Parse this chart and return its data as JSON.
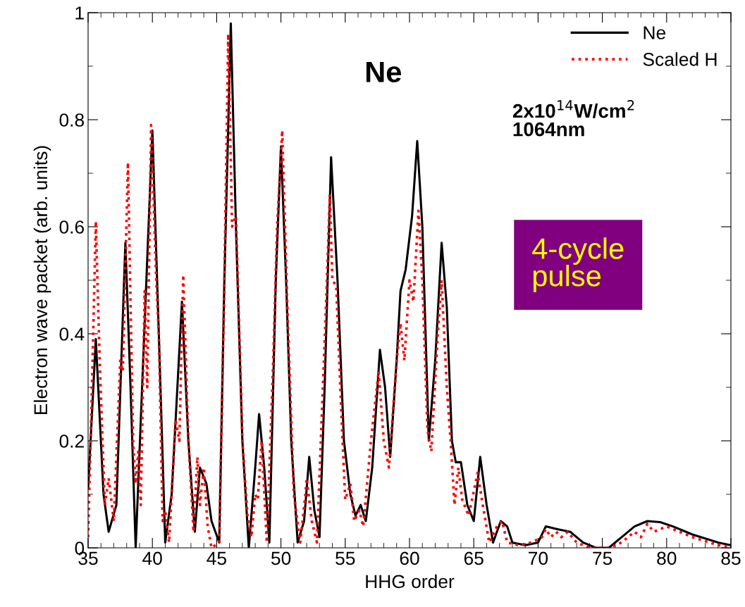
{
  "chart_data": {
    "type": "line",
    "xlabel": "HHG order",
    "ylabel": "Electron wave packet (arb. units)",
    "xlim": [
      35,
      85
    ],
    "xticks": [
      35,
      40,
      45,
      50,
      55,
      60,
      65,
      70,
      75,
      80,
      85
    ],
    "ylim": [
      0,
      1
    ],
    "yticks": [
      0,
      0.2,
      0.4,
      0.6,
      0.8,
      1
    ],
    "grid": false,
    "legend": "top right",
    "marker": "none",
    "annotations": [
      "Ne",
      "2x10$^{14}$W/cm$^{2}$\n1064nm",
      "4-cycle\npulse"
    ],
    "series": [
      {
        "name": "Ne",
        "color": "#000000",
        "line_style": "solid",
        "x": [
          35,
          35.6,
          36.2,
          36.6,
          37.2,
          37.9,
          38.3,
          38.7,
          39.2,
          40.0,
          40.5,
          41.0,
          41.5,
          42.3,
          42.8,
          43.3,
          43.7,
          44.2,
          44.6,
          45.2,
          45.6,
          46.1,
          46.5,
          47.0,
          47.5,
          48.0,
          48.3,
          48.7,
          49.1,
          49.6,
          50.0,
          50.4,
          50.8,
          51.3,
          51.8,
          52.2,
          52.6,
          53.0,
          53.4,
          53.9,
          54.4,
          54.9,
          55.4,
          55.8,
          56.2,
          56.6,
          57.1,
          57.7,
          58.1,
          58.5,
          59.0,
          59.3,
          59.7,
          60.2,
          60.6,
          61.0,
          61.5,
          62.0,
          62.5,
          62.9,
          63.3,
          63.6,
          64.0,
          64.5,
          65.0,
          65.5,
          66.0,
          66.5,
          67.1,
          67.6,
          68.0,
          69.0,
          70.0,
          70.6,
          71.5,
          72.5,
          73.5,
          74.5,
          75.5,
          76.5,
          77.5,
          78.5,
          79.5,
          80.5,
          82,
          84,
          85
        ],
        "values": [
          0.11,
          0.39,
          0.1,
          0.03,
          0.08,
          0.57,
          0.3,
          0.0,
          0.3,
          0.78,
          0.4,
          0.01,
          0.1,
          0.46,
          0.2,
          0.03,
          0.15,
          0.12,
          0.05,
          0.01,
          0.5,
          0.98,
          0.6,
          0.2,
          0.0,
          0.15,
          0.25,
          0.15,
          0.01,
          0.5,
          0.75,
          0.5,
          0.2,
          0.01,
          0.05,
          0.17,
          0.07,
          0.02,
          0.3,
          0.73,
          0.5,
          0.2,
          0.1,
          0.06,
          0.08,
          0.05,
          0.15,
          0.37,
          0.3,
          0.17,
          0.35,
          0.48,
          0.52,
          0.62,
          0.76,
          0.6,
          0.2,
          0.35,
          0.57,
          0.45,
          0.2,
          0.16,
          0.16,
          0.08,
          0.05,
          0.17,
          0.08,
          0.01,
          0.05,
          0.04,
          0.01,
          0.005,
          0.01,
          0.04,
          0.035,
          0.03,
          0.01,
          0.0,
          0.0,
          0.02,
          0.04,
          0.05,
          0.048,
          0.04,
          0.025,
          0.01,
          0.005
        ]
      },
      {
        "name": "Scaled H",
        "color": "#ff0000",
        "line_style": "dotted",
        "x": [
          35,
          35.3,
          35.6,
          35.9,
          36.3,
          36.6,
          37.0,
          37.5,
          37.7,
          38.1,
          38.5,
          38.7,
          38.9,
          39.1,
          39.4,
          39.6,
          39.9,
          40.3,
          40.5,
          40.8,
          41.0,
          41.3,
          41.8,
          42.1,
          42.4,
          42.8,
          43.2,
          43.5,
          43.7,
          44.0,
          44.3,
          44.6,
          45.2,
          45.6,
          45.9,
          46.2,
          46.5,
          47.0,
          47.4,
          47.7,
          48.0,
          48.2,
          48.5,
          48.9,
          49.4,
          49.7,
          50.1,
          50.5,
          51.0,
          51.5,
          51.9,
          52.0,
          52.4,
          52.8,
          53.5,
          53.8,
          54.0,
          54.3,
          54.7,
          55.0,
          55.4,
          55.7,
          56.1,
          56.4,
          57.0,
          57.6,
          58.0,
          58.4,
          59.0,
          59.3,
          59.6,
          60.0,
          60.3,
          60.7,
          61.0,
          61.4,
          61.7,
          62.2,
          62.5,
          62.9,
          63.2,
          63.5,
          63.8,
          64.1,
          64.6,
          65.3,
          65.7,
          66.2,
          66.8,
          67.2,
          67.6,
          68.5,
          69.5,
          70.3,
          70.6,
          71.0,
          71.4,
          71.8,
          72.3,
          73.0,
          74,
          75.5,
          76.5,
          77.5,
          78,
          78.5,
          79,
          80,
          81,
          82,
          84,
          85
        ],
        "values": [
          0.02,
          0.3,
          0.61,
          0.35,
          0.08,
          0.13,
          0.05,
          0.35,
          0.33,
          0.72,
          0.2,
          0.12,
          0.18,
          0.08,
          0.48,
          0.3,
          0.79,
          0.5,
          0.4,
          0.05,
          0.07,
          0.01,
          0.24,
          0.2,
          0.51,
          0.2,
          0.03,
          0.17,
          0.08,
          0.15,
          0.04,
          0.0,
          0.01,
          0.5,
          0.96,
          0.6,
          0.62,
          0.2,
          0.06,
          0.02,
          0.1,
          0.09,
          0.2,
          0.01,
          0.35,
          0.6,
          0.78,
          0.45,
          0.1,
          0.01,
          0.1,
          0.13,
          0.05,
          0.01,
          0.45,
          0.66,
          0.5,
          0.49,
          0.25,
          0.09,
          0.12,
          0.05,
          0.07,
          0.04,
          0.2,
          0.33,
          0.2,
          0.15,
          0.35,
          0.42,
          0.35,
          0.5,
          0.46,
          0.63,
          0.5,
          0.22,
          0.18,
          0.4,
          0.5,
          0.3,
          0.2,
          0.08,
          0.15,
          0.09,
          0.06,
          0.14,
          0.08,
          0.01,
          0.04,
          0.05,
          0.01,
          0.005,
          0.01,
          0.02,
          0.035,
          0.02,
          0.03,
          0.02,
          0.03,
          0.01,
          0.0,
          0.0,
          0.01,
          0.03,
          0.02,
          0.045,
          0.03,
          0.04,
          0.03,
          0.02,
          0.005,
          0.002
        ]
      }
    ]
  }
}
